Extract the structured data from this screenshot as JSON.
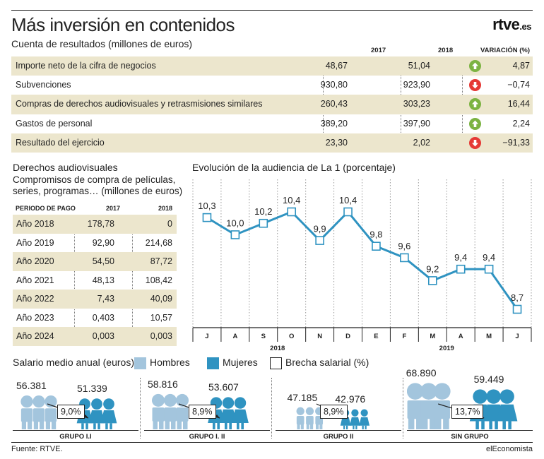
{
  "title": "Más inversión en contenidos",
  "logo": {
    "main": "rtve",
    "suffix": ".es"
  },
  "pl": {
    "subtitle": "Cuenta de resultados (millones de euros)",
    "col_2017": "2017",
    "col_2018": "2018",
    "col_var": "VARIACIÓN (%)",
    "rows": [
      {
        "label": "Importe neto de la cifra de negocios",
        "v2017": "48,67",
        "v2018": "51,04",
        "variation": "4,87",
        "trend": "up"
      },
      {
        "label": "Subvenciones",
        "v2017": "930,80",
        "v2018": "923,90",
        "variation": "−0,74",
        "trend": "down"
      },
      {
        "label": "Compras de derechos audiovisuales y retrasmisiones similares",
        "v2017": "260,43",
        "v2018": "303,23",
        "variation": "16,44",
        "trend": "up"
      },
      {
        "label": "Gastos de personal",
        "v2017": "389,20",
        "v2018": "397,90",
        "variation": "2,24",
        "trend": "up"
      },
      {
        "label": "Resultado del ejercicio",
        "v2017": "23,30",
        "v2018": "2,02",
        "variation": "−91,33",
        "trend": "down"
      }
    ]
  },
  "derechos": {
    "title": "Derechos audiovisuales",
    "subtitle": "Compromisos de compra de películas, series, programas… (millones de euros)",
    "col_period": "PERIODO DE PAGO",
    "col_2017": "2017",
    "col_2018": "2018",
    "rows": [
      {
        "period": "Año 2018",
        "v2017": "178,78",
        "v2018": "0"
      },
      {
        "period": "Año 2019",
        "v2017": "92,90",
        "v2018": "214,68"
      },
      {
        "period": "Año 2020",
        "v2017": "54,50",
        "v2018": "87,72"
      },
      {
        "period": "Año 2021",
        "v2017": "48,13",
        "v2018": "108,42"
      },
      {
        "period": "Año 2022",
        "v2017": "7,43",
        "v2018": "40,09"
      },
      {
        "period": "Año 2023",
        "v2017": "0,403",
        "v2018": "10,57"
      },
      {
        "period": "Año 2024",
        "v2017": "0,003",
        "v2018": "0,003"
      }
    ]
  },
  "chart_data": {
    "type": "line",
    "title": "Evolución de la audiencia de La 1 (porcentaje)",
    "x": [
      "J",
      "A",
      "S",
      "O",
      "N",
      "D",
      "E",
      "F",
      "M",
      "A",
      "M",
      "J"
    ],
    "year_groups": [
      {
        "label": "2018",
        "count": 6
      },
      {
        "label": "2019",
        "count": 6
      }
    ],
    "values": [
      10.3,
      10.0,
      10.2,
      10.4,
      9.9,
      10.4,
      9.8,
      9.6,
      9.2,
      9.4,
      9.4,
      8.7
    ],
    "value_labels": [
      "10,3",
      "10,0",
      "10,2",
      "10,4",
      "9,9",
      "10,4",
      "9,8",
      "9,6",
      "9,2",
      "9,4",
      "9,4",
      "8,7"
    ],
    "ylim": [
      8.5,
      10.8
    ],
    "grid": "vertical-dotted",
    "line_color": "#2f93c1"
  },
  "salary": {
    "title": "Salario medio anual (euros)",
    "legend": [
      {
        "label": "Hombres",
        "color": "#a3c5dd"
      },
      {
        "label": "Mujeres",
        "color": "#2f93c1"
      },
      {
        "label": "Brecha salarial (%)",
        "color": "#ffffff"
      }
    ],
    "groups": [
      {
        "name": "GRUPO I.I",
        "men": "56.381",
        "women": "51.339",
        "gap": "9,0%",
        "men_value": 56381,
        "women_value": 51339
      },
      {
        "name": "GRUPO I. II",
        "men": "58.816",
        "women": "53.607",
        "gap": "8,9%",
        "men_value": 58816,
        "women_value": 53607
      },
      {
        "name": "GRUPO II",
        "men": "47.185",
        "women": "42.976",
        "gap": "8,9%",
        "men_value": 47185,
        "women_value": 42976
      },
      {
        "name": "SIN GRUPO",
        "men": "68.890",
        "women": "59.449",
        "gap": "13,7%",
        "men_value": 68890,
        "women_value": 59449
      }
    ]
  },
  "footer": {
    "source": "Fuente: RTVE.",
    "brand": "elEconomista"
  },
  "colors": {
    "accent": "#2f93c1",
    "men": "#a3c5dd",
    "row_shade": "#ece6cd",
    "up": "#7cb342",
    "down": "#e53935"
  }
}
